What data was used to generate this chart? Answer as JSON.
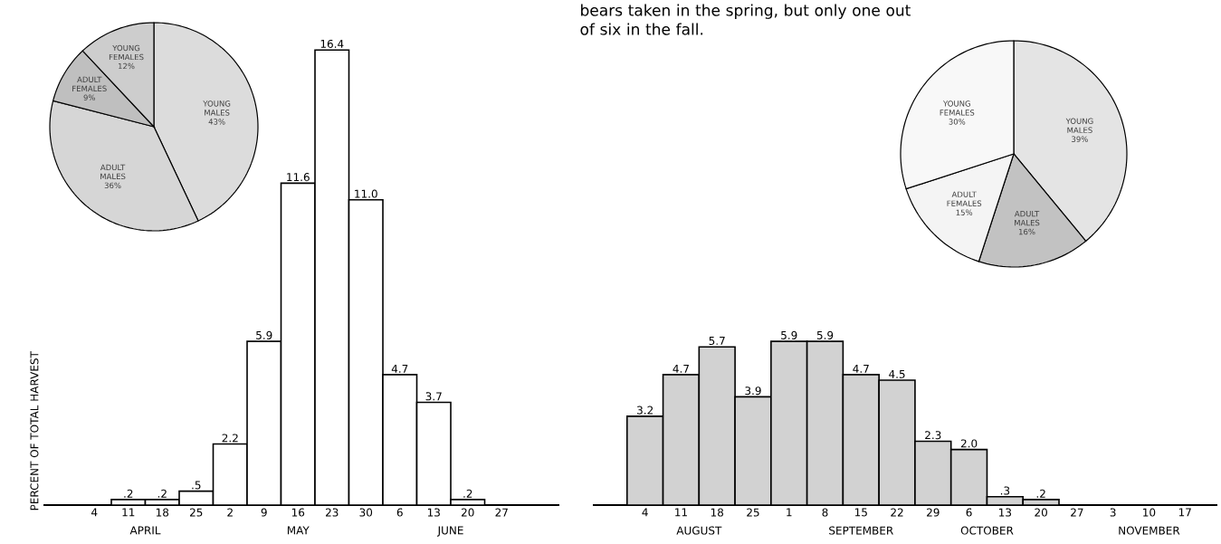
{
  "chart_data": [
    {
      "type": "bar",
      "ylabel": "PERCENT OF TOTAL HARVEST",
      "color": "#ffffff",
      "categories": [
        "4",
        "11",
        "18",
        "25",
        "2",
        "9",
        "16",
        "23",
        "30",
        "6",
        "13",
        "20",
        "27"
      ],
      "values": [
        null,
        0.2,
        0.2,
        0.5,
        2.2,
        5.9,
        11.6,
        16.4,
        11.0,
        4.7,
        3.7,
        0.2,
        null
      ],
      "value_labels": [
        null,
        ".2",
        ".2",
        ".5",
        "2.2",
        "5.9",
        "11.6",
        "16.4",
        "11.0",
        "4.7",
        "3.7",
        ".2",
        null
      ],
      "annotations": [
        "APRIL",
        "MAY",
        "JUNE"
      ]
    },
    {
      "type": "bar",
      "color": "#d2d2d2",
      "categories": [
        "4",
        "11",
        "18",
        "25",
        "1",
        "8",
        "15",
        "22",
        "29",
        "6",
        "13",
        "20",
        "27",
        "3",
        "10",
        "17"
      ],
      "values": [
        3.2,
        4.7,
        5.7,
        3.9,
        5.9,
        5.9,
        4.7,
        4.5,
        2.3,
        2.0,
        0.3,
        0.2,
        null,
        null,
        null,
        null
      ],
      "value_labels": [
        "3.2",
        "4.7",
        "5.7",
        "3.9",
        "5.9",
        "5.9",
        "4.7",
        "4.5",
        "2.3",
        "2.0",
        ".3",
        ".2",
        null,
        null,
        null,
        null
      ],
      "annotations": [
        "bears taken in the spring, but only one out of six in the fall.",
        "AUGUST",
        "SEPTEMBER",
        "OCTOBER",
        "NOVEMBER"
      ]
    },
    {
      "type": "pie",
      "categories": [
        "YOUNG MALES",
        "ADULT MALES",
        "ADULT FEMALES",
        "YOUNG FEMALES"
      ],
      "values": [
        43,
        36,
        9,
        12
      ],
      "value_labels": [
        "43%",
        "36%",
        "9%",
        "12%"
      ],
      "colors": [
        "#dcdcdc",
        "#d6d6d6",
        "#bfbfbf",
        "#cdcdcd"
      ]
    },
    {
      "type": "pie",
      "categories": [
        "YOUNG MALES",
        "ADULT MALES",
        "ADULT FEMALES",
        "YOUNG FEMALES"
      ],
      "values": [
        39,
        16,
        15,
        30
      ],
      "value_labels": [
        "39%",
        "16%",
        "15%",
        "30%"
      ],
      "colors": [
        "#e4e4e4",
        "#c2c2c2",
        "#f4f4f4",
        "#f8f8f8"
      ]
    }
  ]
}
